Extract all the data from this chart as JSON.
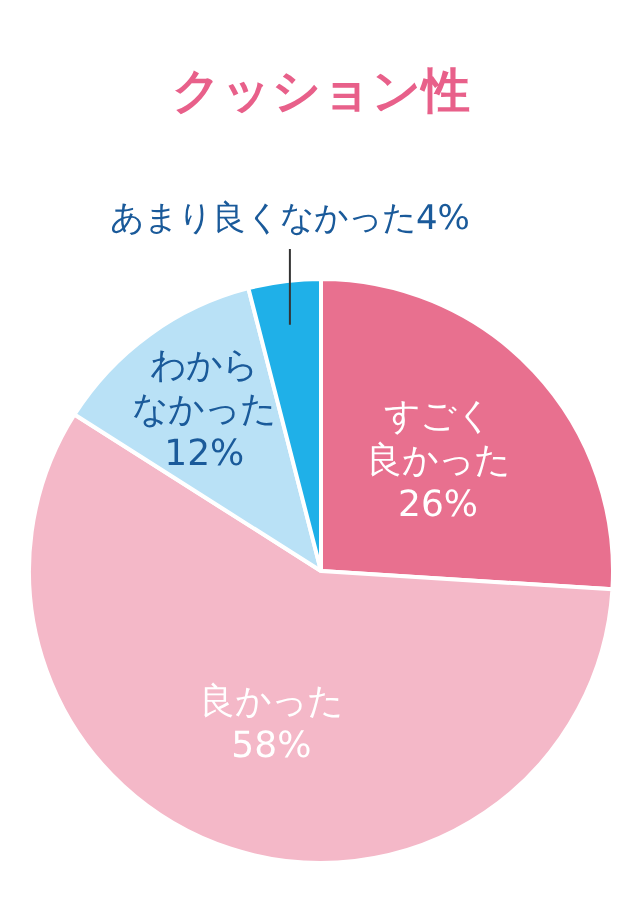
{
  "chart_data": {
    "type": "pie",
    "title": "クッション性",
    "categories": [
      "すごく良かった",
      "良かった",
      "わからなかった",
      "あまり良くなかった"
    ],
    "values": [
      26,
      58,
      12,
      4
    ],
    "colors": [
      "#e8708f",
      "#f4b8c8",
      "#b9e1f6",
      "#1fb0e8"
    ],
    "value_labels": [
      "26%",
      "58%",
      "12%",
      "4%"
    ]
  }
}
